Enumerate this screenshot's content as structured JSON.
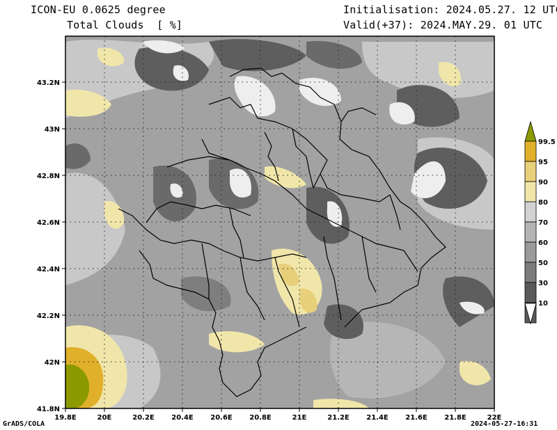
{
  "header": {
    "model": "ICON-EU 0.0625 degree",
    "field": "Total Clouds  [ %]",
    "init": "Initialisation: 2024.05.27. 12 UTC",
    "valid": "Valid(+37): 2024.MAY.29. 01 UTC"
  },
  "footer": {
    "credit": "GrADS/COLA",
    "timestamp": "2024-05-27-16:31"
  },
  "map": {
    "lon_ticks": [
      "19.8E",
      "20E",
      "20.2E",
      "20.4E",
      "20.6E",
      "20.8E",
      "21E",
      "21.2E",
      "21.4E",
      "21.6E",
      "21.8E",
      "22E"
    ],
    "lat_ticks": [
      "43.2N",
      "43N",
      "42.8N",
      "42.6N",
      "42.4N",
      "42.2N",
      "42N",
      "41.8N"
    ]
  },
  "legend": {
    "levels": [
      {
        "label": "99.5",
        "color": "#8c9a00"
      },
      {
        "label": "95",
        "color": "#e0b02a"
      },
      {
        "label": "90",
        "color": "#e8cf7a"
      },
      {
        "label": "80",
        "color": "#f0e6aa"
      },
      {
        "label": "70",
        "color": "#d2d2d2"
      },
      {
        "label": "60",
        "color": "#b4b4b4"
      },
      {
        "label": "50",
        "color": "#9a9a9a"
      },
      {
        "label": "30",
        "color": "#7c7c7c"
      },
      {
        "label": "10",
        "color": "#5a5a5a"
      }
    ],
    "top_color": "#8c9a00",
    "bottom_color": "#ffffff"
  }
}
